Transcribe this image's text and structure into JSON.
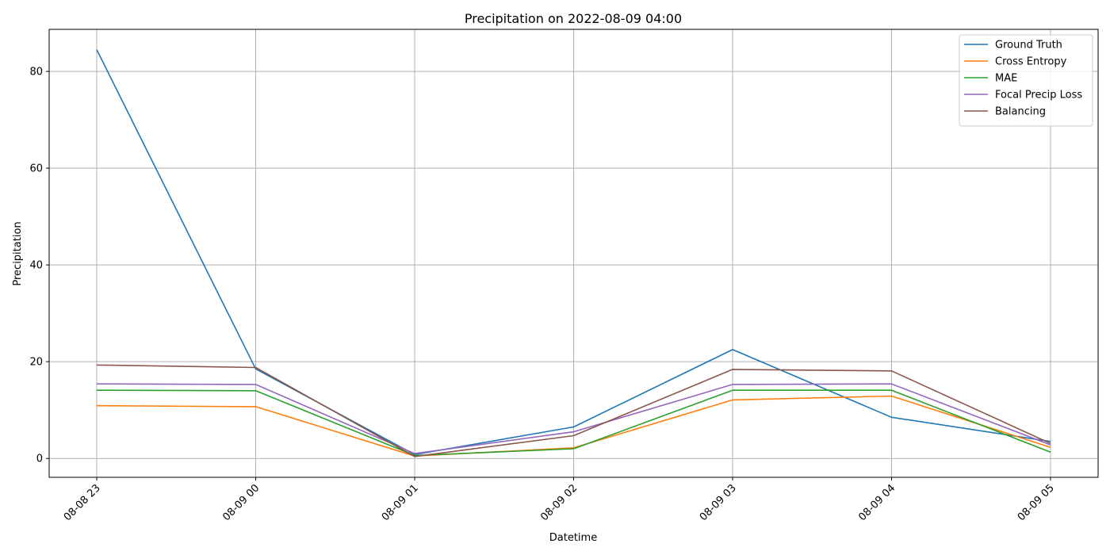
{
  "chart_data": {
    "type": "line",
    "title": "Precipitation on 2022-08-09 04:00",
    "xlabel": "Datetime",
    "ylabel": "Precipitation",
    "x": [
      "08-08 23",
      "08-09 00",
      "08-09 01",
      "08-09 02",
      "08-09 03",
      "08-09 04",
      "08-09 05"
    ],
    "ylim": [
      -3.9,
      88.7
    ],
    "yticks": [
      0,
      20,
      40,
      60,
      80
    ],
    "grid": true,
    "legend_position": "top-right",
    "series": [
      {
        "name": "Ground Truth",
        "color": "#1f77b4",
        "values": [
          84.5,
          18.5,
          0.8,
          6.5,
          22.5,
          8.5,
          3.5
        ]
      },
      {
        "name": "Cross Entropy",
        "color": "#ff7f0e",
        "values": [
          10.9,
          10.7,
          0.5,
          2.2,
          12.1,
          12.9,
          2.3
        ]
      },
      {
        "name": "MAE",
        "color": "#2ca02c",
        "values": [
          14.1,
          14.0,
          0.6,
          2.0,
          14.1,
          14.1,
          1.3
        ]
      },
      {
        "name": "Focal Precip Loss",
        "color": "#9467bd",
        "values": [
          15.4,
          15.3,
          1.0,
          5.5,
          15.3,
          15.4,
          2.8
        ]
      },
      {
        "name": "Balancing",
        "color": "#8c564b",
        "values": [
          19.3,
          18.8,
          0.4,
          4.7,
          18.4,
          18.1,
          3.1
        ]
      }
    ]
  }
}
